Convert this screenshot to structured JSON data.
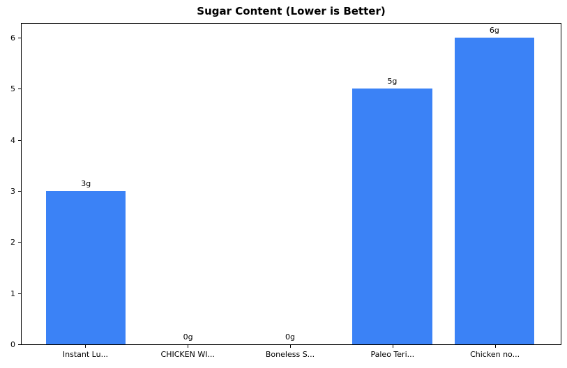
{
  "figure": {
    "background": "#ffffff"
  },
  "chart_data": {
    "type": "bar",
    "title": "Sugar Content (Lower is Better)",
    "categories": [
      "Instant Lu...",
      "CHICKEN WI...",
      "Boneless S...",
      "Paleo Teri...",
      "Chicken no..."
    ],
    "values": [
      3,
      0,
      0,
      5,
      6
    ],
    "bar_labels": [
      "3g",
      "0g",
      "0g",
      "5g",
      "6g"
    ],
    "unit": "g",
    "xlabel": "",
    "ylabel": "",
    "yticks": [
      0,
      1,
      2,
      3,
      4,
      5,
      6
    ],
    "ylim": [
      0,
      6.3
    ],
    "grid": false,
    "legend": "none",
    "bar_color": "#3b82f6",
    "axis_color": "#000000",
    "text_color": "#000000",
    "layout": {
      "xlim": [
        -0.63,
        4.65
      ],
      "bar_width_units": 0.78
    }
  }
}
